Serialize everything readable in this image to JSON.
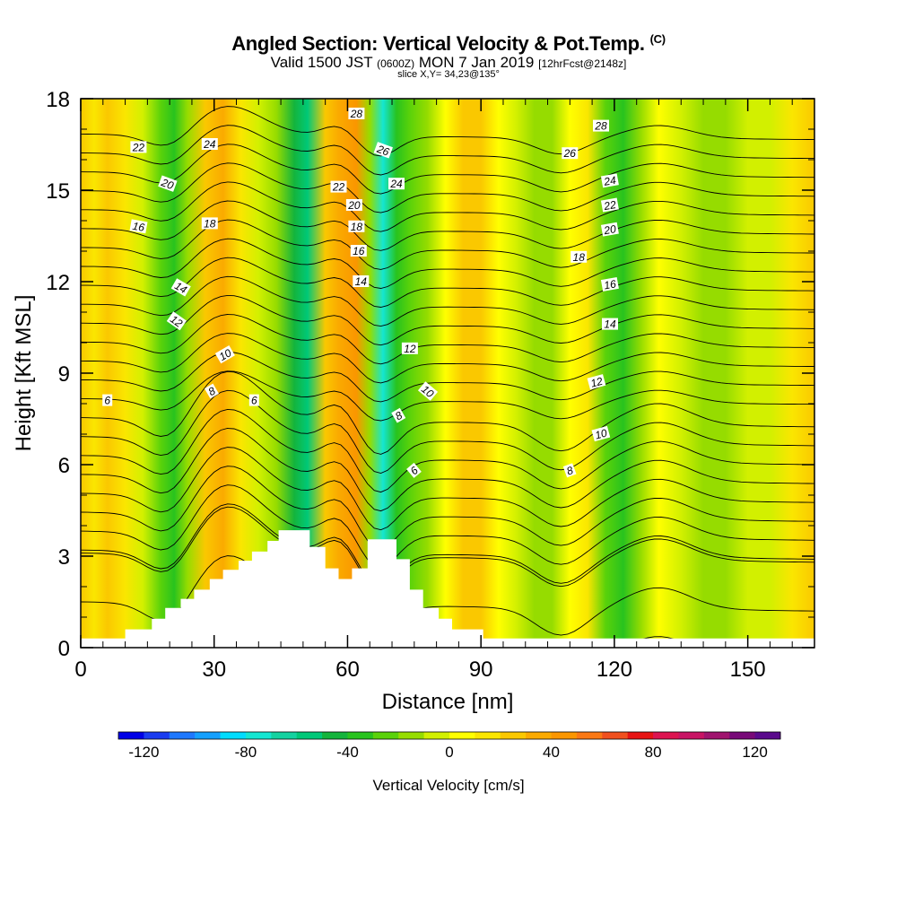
{
  "header": {
    "title": "Angled Section: Vertical Velocity & Pot.Temp.",
    "title_unit": "(C)",
    "valid_prefix": "Valid 1500 JST",
    "valid_zulu": "(0600Z)",
    "valid_date": "MON 7 Jan 2019",
    "forecast": "[12hrFcst@2148z]",
    "slice": "slice X,Y= 34,23@135°"
  },
  "chart_data": {
    "type": "heatmap",
    "xlabel": "Distance [nm]",
    "ylabel": "Height [Kft MSL]",
    "xlim": [
      0,
      165
    ],
    "ylim": [
      0,
      18
    ],
    "x_ticks": [
      0,
      30,
      60,
      90,
      120,
      150
    ],
    "y_ticks": [
      0,
      3,
      6,
      9,
      12,
      15,
      18
    ],
    "fill_variable": "Vertical Velocity [cm/s]",
    "colorbar": {
      "label": "Vertical Velocity [cm/s]",
      "tick_labels": [
        -120,
        -80,
        -40,
        0,
        40,
        80,
        120
      ],
      "min": -130,
      "step": 10,
      "colors": [
        "#0000e6",
        "#1a3cf0",
        "#1e78ff",
        "#14a0ff",
        "#00dcff",
        "#14e6d2",
        "#14d2a0",
        "#00c878",
        "#14b43c",
        "#28c31e",
        "#5ad20a",
        "#96dc00",
        "#d2f000",
        "#ffff00",
        "#fae600",
        "#fac800",
        "#faaa00",
        "#fa9600",
        "#fa7814",
        "#f0501e",
        "#e61414",
        "#dc1450",
        "#c81464",
        "#a0146e",
        "#780a78",
        "#5a0a8c"
      ]
    },
    "vertical_velocity_columns": [
      {
        "x": 0,
        "w": 20
      },
      {
        "x": 3,
        "w": 12
      },
      {
        "x": 6,
        "w": 22
      },
      {
        "x": 10,
        "w": 12
      },
      {
        "x": 14,
        "w": -10
      },
      {
        "x": 18,
        "w": -28
      },
      {
        "x": 21,
        "w": -32
      },
      {
        "x": 24,
        "w": -12
      },
      {
        "x": 28,
        "w": 28
      },
      {
        "x": 32,
        "w": 30
      },
      {
        "x": 36,
        "w": 15
      },
      {
        "x": 40,
        "w": -2
      },
      {
        "x": 44,
        "w": -12
      },
      {
        "x": 48,
        "w": -42
      },
      {
        "x": 51,
        "w": -55
      },
      {
        "x": 55,
        "w": 20
      },
      {
        "x": 58,
        "w": 38
      },
      {
        "x": 62,
        "w": 40
      },
      {
        "x": 65,
        "w": -15
      },
      {
        "x": 68,
        "w": -80
      },
      {
        "x": 71,
        "w": -40
      },
      {
        "x": 74,
        "w": -25
      },
      {
        "x": 78,
        "w": -15
      },
      {
        "x": 82,
        "w": 2
      },
      {
        "x": 86,
        "w": 25
      },
      {
        "x": 90,
        "w": 22
      },
      {
        "x": 94,
        "w": 5
      },
      {
        "x": 98,
        "w": -8
      },
      {
        "x": 102,
        "w": -20
      },
      {
        "x": 106,
        "w": -12
      },
      {
        "x": 110,
        "w": 5
      },
      {
        "x": 114,
        "w": 18
      },
      {
        "x": 118,
        "w": -25
      },
      {
        "x": 122,
        "w": -35
      },
      {
        "x": 126,
        "w": -12
      },
      {
        "x": 130,
        "w": 8
      },
      {
        "x": 135,
        "w": -5
      },
      {
        "x": 140,
        "w": -18
      },
      {
        "x": 145,
        "w": -15
      },
      {
        "x": 150,
        "w": -10
      },
      {
        "x": 155,
        "w": -8
      },
      {
        "x": 160,
        "w": 15
      },
      {
        "x": 165,
        "w": 25
      }
    ],
    "terrain_kft": [
      {
        "x": 0,
        "h": 0.3
      },
      {
        "x": 10,
        "h": 0.3
      },
      {
        "x": 10,
        "h": 0.6
      },
      {
        "x": 16,
        "h": 0.6
      },
      {
        "x": 16,
        "h": 0.95
      },
      {
        "x": 19,
        "h": 0.95
      },
      {
        "x": 19,
        "h": 1.3
      },
      {
        "x": 22.5,
        "h": 1.3
      },
      {
        "x": 22.5,
        "h": 1.6
      },
      {
        "x": 25.5,
        "h": 1.6
      },
      {
        "x": 25.5,
        "h": 1.9
      },
      {
        "x": 29,
        "h": 1.9
      },
      {
        "x": 29,
        "h": 2.25
      },
      {
        "x": 32,
        "h": 2.25
      },
      {
        "x": 32,
        "h": 2.55
      },
      {
        "x": 35.5,
        "h": 2.55
      },
      {
        "x": 35.5,
        "h": 2.85
      },
      {
        "x": 38.5,
        "h": 2.85
      },
      {
        "x": 38.5,
        "h": 3.15
      },
      {
        "x": 42,
        "h": 3.15
      },
      {
        "x": 42,
        "h": 3.5
      },
      {
        "x": 44.5,
        "h": 3.5
      },
      {
        "x": 44.5,
        "h": 3.85
      },
      {
        "x": 51.5,
        "h": 3.85
      },
      {
        "x": 51.5,
        "h": 3.3
      },
      {
        "x": 55,
        "h": 3.3
      },
      {
        "x": 55,
        "h": 2.6
      },
      {
        "x": 58,
        "h": 2.6
      },
      {
        "x": 58,
        "h": 2.25
      },
      {
        "x": 61,
        "h": 2.25
      },
      {
        "x": 61,
        "h": 2.6
      },
      {
        "x": 64.5,
        "h": 2.6
      },
      {
        "x": 64.5,
        "h": 3.55
      },
      {
        "x": 71,
        "h": 3.55
      },
      {
        "x": 71,
        "h": 2.9
      },
      {
        "x": 74,
        "h": 2.9
      },
      {
        "x": 74,
        "h": 1.9
      },
      {
        "x": 77,
        "h": 1.9
      },
      {
        "x": 77,
        "h": 1.3
      },
      {
        "x": 80.5,
        "h": 1.3
      },
      {
        "x": 80.5,
        "h": 0.95
      },
      {
        "x": 83.5,
        "h": 0.95
      },
      {
        "x": 83.5,
        "h": 0.6
      },
      {
        "x": 90.5,
        "h": 0.6
      },
      {
        "x": 90.5,
        "h": 0.3
      },
      {
        "x": 165,
        "h": 0.3
      }
    ],
    "isentropes_c": [
      2,
      3,
      4,
      5,
      6,
      7,
      8,
      9,
      10,
      11,
      12,
      13,
      14,
      15,
      16,
      17,
      18,
      19,
      20,
      21,
      22,
      23,
      24,
      25,
      26,
      27,
      28
    ],
    "contour_labels": [
      {
        "text": "6",
        "x": 6,
        "y": 8.1,
        "rot": 0
      },
      {
        "text": "8",
        "x": 29.5,
        "y": 8.4,
        "rot": -30
      },
      {
        "text": "6",
        "x": 39,
        "y": 8.1,
        "rot": 0
      },
      {
        "text": "10",
        "x": 32.5,
        "y": 9.6,
        "rot": -30
      },
      {
        "text": "12",
        "x": 21.5,
        "y": 10.7,
        "rot": 35
      },
      {
        "text": "14",
        "x": 22.5,
        "y": 11.8,
        "rot": 30
      },
      {
        "text": "16",
        "x": 13,
        "y": 13.8,
        "rot": 10
      },
      {
        "text": "18",
        "x": 29,
        "y": 13.9,
        "rot": 0
      },
      {
        "text": "20",
        "x": 19.5,
        "y": 15.2,
        "rot": 20
      },
      {
        "text": "22",
        "x": 13,
        "y": 16.4,
        "rot": 0
      },
      {
        "text": "24",
        "x": 29,
        "y": 16.5,
        "rot": 0
      },
      {
        "text": "28",
        "x": 62,
        "y": 17.5,
        "rot": 0
      },
      {
        "text": "26",
        "x": 68,
        "y": 16.3,
        "rot": 20
      },
      {
        "text": "22",
        "x": 58,
        "y": 15.1,
        "rot": 0
      },
      {
        "text": "24",
        "x": 71,
        "y": 15.2,
        "rot": 0
      },
      {
        "text": "20",
        "x": 61.5,
        "y": 14.5,
        "rot": 0
      },
      {
        "text": "18",
        "x": 62,
        "y": 13.8,
        "rot": 0
      },
      {
        "text": "16",
        "x": 62.5,
        "y": 13.0,
        "rot": 0
      },
      {
        "text": "14",
        "x": 63,
        "y": 12.0,
        "rot": 0
      },
      {
        "text": "12",
        "x": 74,
        "y": 9.8,
        "rot": 0
      },
      {
        "text": "10",
        "x": 78,
        "y": 8.4,
        "rot": 40
      },
      {
        "text": "8",
        "x": 71.5,
        "y": 7.6,
        "rot": -30
      },
      {
        "text": "6",
        "x": 75,
        "y": 5.8,
        "rot": -40
      },
      {
        "text": "28",
        "x": 117,
        "y": 17.1,
        "rot": 0
      },
      {
        "text": "26",
        "x": 110,
        "y": 16.2,
        "rot": 0
      },
      {
        "text": "24",
        "x": 119,
        "y": 15.3,
        "rot": -10
      },
      {
        "text": "22",
        "x": 119,
        "y": 14.5,
        "rot": -10
      },
      {
        "text": "20",
        "x": 119,
        "y": 13.7,
        "rot": -10
      },
      {
        "text": "18",
        "x": 112,
        "y": 12.8,
        "rot": 0
      },
      {
        "text": "16",
        "x": 119,
        "y": 11.9,
        "rot": -10
      },
      {
        "text": "14",
        "x": 119,
        "y": 10.6,
        "rot": 0
      },
      {
        "text": "12",
        "x": 116,
        "y": 8.7,
        "rot": -15
      },
      {
        "text": "10",
        "x": 117,
        "y": 7.0,
        "rot": -15
      },
      {
        "text": "8",
        "x": 110,
        "y": 5.8,
        "rot": -20
      }
    ]
  }
}
